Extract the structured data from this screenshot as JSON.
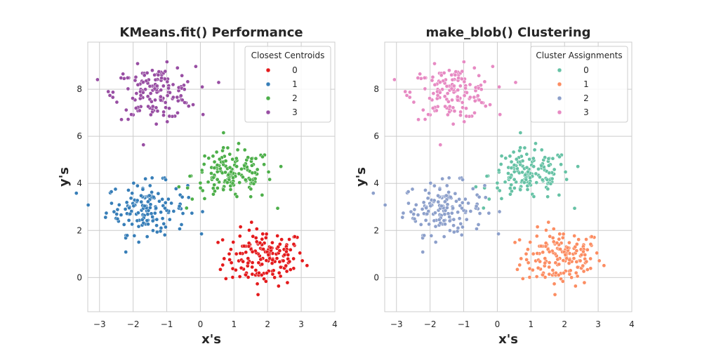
{
  "chart_data": [
    {
      "type": "scatter",
      "title": "KMeans.fit() Performance",
      "xlabel": "x's",
      "ylabel": "y's",
      "xlim": [
        -3.35,
        4.0
      ],
      "ylim": [
        -1.45,
        10.0
      ],
      "xticks": [
        -3,
        -2,
        -1,
        0,
        1,
        2,
        3,
        4
      ],
      "yticks": [
        0,
        2,
        4,
        6,
        8
      ],
      "grid": true,
      "legend": {
        "title": "Closest Centroids",
        "placement": "top-right"
      },
      "series": [
        {
          "name": "0",
          "color": "#e41a1c",
          "center": [
            1.9,
            0.85
          ],
          "spread": [
            0.6,
            0.6
          ],
          "n": 160
        },
        {
          "name": "1",
          "color": "#377eb8",
          "center": [
            -1.6,
            2.95
          ],
          "spread": [
            0.6,
            0.55
          ],
          "n": 150
        },
        {
          "name": "2",
          "color": "#4daf4a",
          "center": [
            0.95,
            4.35
          ],
          "spread": [
            0.6,
            0.55
          ],
          "n": 150
        },
        {
          "name": "3",
          "color": "#984ea3",
          "center": [
            -1.35,
            7.85
          ],
          "spread": [
            0.6,
            0.55
          ],
          "n": 150
        }
      ]
    },
    {
      "type": "scatter",
      "title": "make_blob() Clustering",
      "xlabel": "x's",
      "ylabel": "y's",
      "xlim": [
        -3.35,
        4.0
      ],
      "ylim": [
        -1.45,
        10.0
      ],
      "xticks": [
        -3,
        -2,
        -1,
        0,
        1,
        2,
        3,
        4
      ],
      "yticks": [
        0,
        2,
        4,
        6,
        8
      ],
      "grid": true,
      "legend": {
        "title": "Cluster Assignments",
        "placement": "top-right"
      },
      "series": [
        {
          "name": "0",
          "color": "#66c2a5",
          "center": [
            0.95,
            4.35
          ],
          "spread": [
            0.6,
            0.55
          ],
          "n": 150
        },
        {
          "name": "1",
          "color": "#fc8d62",
          "center": [
            1.9,
            0.85
          ],
          "spread": [
            0.6,
            0.6
          ],
          "n": 160
        },
        {
          "name": "2",
          "color": "#8da0cb",
          "center": [
            -1.6,
            2.95
          ],
          "spread": [
            0.6,
            0.55
          ],
          "n": 150
        },
        {
          "name": "3",
          "color": "#e78ac3",
          "center": [
            -1.35,
            7.85
          ],
          "spread": [
            0.6,
            0.55
          ],
          "n": 150
        }
      ]
    }
  ]
}
